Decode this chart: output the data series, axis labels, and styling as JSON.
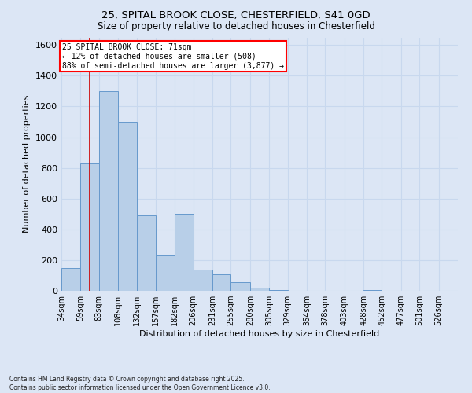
{
  "title_line1": "25, SPITAL BROOK CLOSE, CHESTERFIELD, S41 0GD",
  "title_line2": "Size of property relative to detached houses in Chesterfield",
  "xlabel": "Distribution of detached houses by size in Chesterfield",
  "ylabel": "Number of detached properties",
  "footnote": "Contains HM Land Registry data © Crown copyright and database right 2025.\nContains public sector information licensed under the Open Government Licence v3.0.",
  "bin_labels": [
    "34sqm",
    "59sqm",
    "83sqm",
    "108sqm",
    "132sqm",
    "157sqm",
    "182sqm",
    "206sqm",
    "231sqm",
    "255sqm",
    "280sqm",
    "305sqm",
    "329sqm",
    "354sqm",
    "378sqm",
    "403sqm",
    "428sqm",
    "452sqm",
    "477sqm",
    "501sqm",
    "526sqm"
  ],
  "bar_values": [
    150,
    830,
    1300,
    1100,
    490,
    230,
    500,
    140,
    110,
    55,
    20,
    5,
    0,
    0,
    0,
    0,
    5,
    0,
    0,
    0,
    0
  ],
  "bar_color": "#b8cfe8",
  "bar_edge_color": "#6699cc",
  "ylim": [
    0,
    1650
  ],
  "yticks": [
    0,
    200,
    400,
    600,
    800,
    1000,
    1200,
    1400,
    1600
  ],
  "vline_x": 71,
  "annotation_box_text": "25 SPITAL BROOK CLOSE: 71sqm\n← 12% of detached houses are smaller (508)\n88% of semi-detached houses are larger (3,877) →",
  "background_color": "#dce6f5",
  "grid_color": "#c8d8ee",
  "fig_facecolor": "#dce6f5",
  "bar_bins": [
    34,
    59,
    83,
    108,
    132,
    157,
    182,
    206,
    231,
    255,
    280,
    305,
    329,
    354,
    378,
    403,
    428,
    452,
    477,
    501,
    526,
    551
  ]
}
